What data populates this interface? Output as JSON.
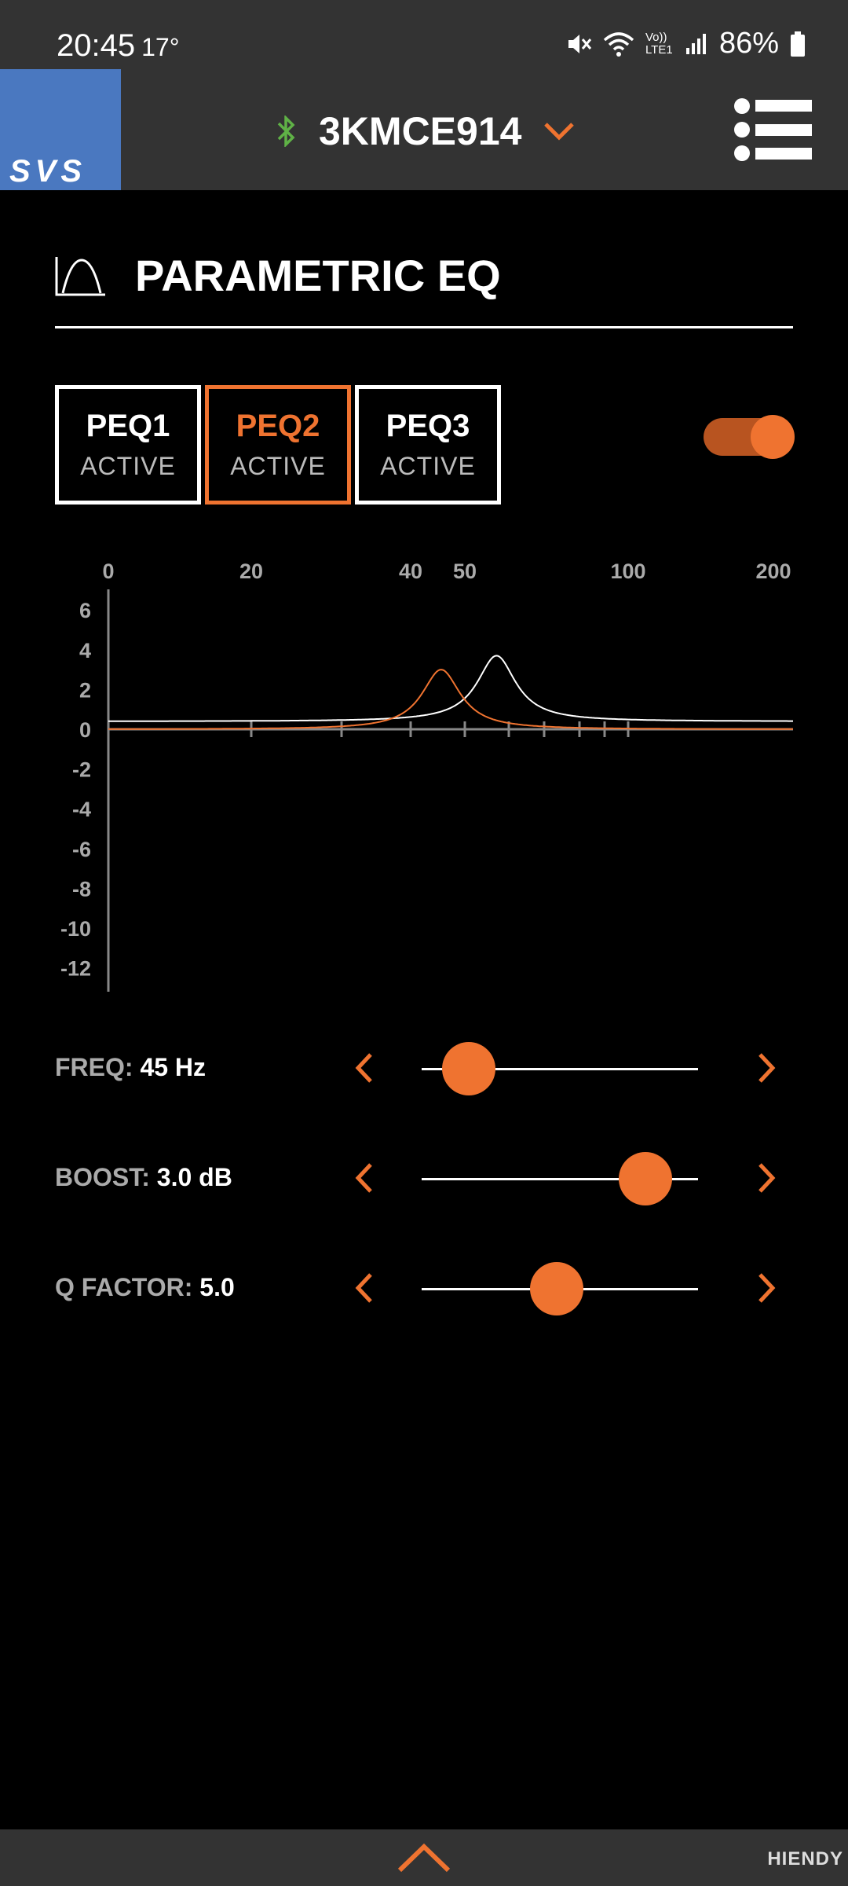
{
  "status_bar": {
    "time": "20:45",
    "temperature": "17°",
    "battery": "86%",
    "network_label": "Vo)) LTE1"
  },
  "header": {
    "logo_text": "SVS",
    "device_name": "3KMCE914",
    "accent_color": "#ef7330",
    "bluetooth_color": "#5fb246"
  },
  "section": {
    "icon": "eq-curve-icon",
    "title": "PARAMETRIC EQ"
  },
  "tabs": [
    {
      "label": "PEQ1",
      "status": "ACTIVE",
      "selected": false
    },
    {
      "label": "PEQ2",
      "status": "ACTIVE",
      "selected": true
    },
    {
      "label": "PEQ3",
      "status": "ACTIVE",
      "selected": false
    }
  ],
  "peq_enabled": true,
  "chart_data": {
    "type": "line",
    "x_tick_labels": [
      "0",
      "20",
      "40",
      "50",
      "100",
      "200"
    ],
    "y_tick_labels": [
      "6",
      "4",
      "2",
      "0",
      "-2",
      "-4",
      "-6",
      "-8",
      "-10",
      "-12"
    ],
    "ylim": [
      -12,
      6
    ],
    "series": [
      {
        "color": "#ffffff",
        "peak_freq_hz": 57,
        "peak_gain_db": 3.3,
        "q": 5.0,
        "baseline_db": 0.4
      },
      {
        "color": "#ef7330",
        "peak_freq_hz": 45,
        "peak_gain_db": 3.0,
        "q": 5.0,
        "baseline_db": 0
      }
    ]
  },
  "controls": [
    {
      "key": "FREQ:",
      "value": "45 Hz",
      "level": 0.17
    },
    {
      "key": "BOOST:",
      "value": "3.0 dB",
      "level": 0.81
    },
    {
      "key": "Q FACTOR:",
      "value": "5.0",
      "level": 0.49
    }
  ],
  "bottom_bar": {
    "watermark": "HIENDY"
  }
}
